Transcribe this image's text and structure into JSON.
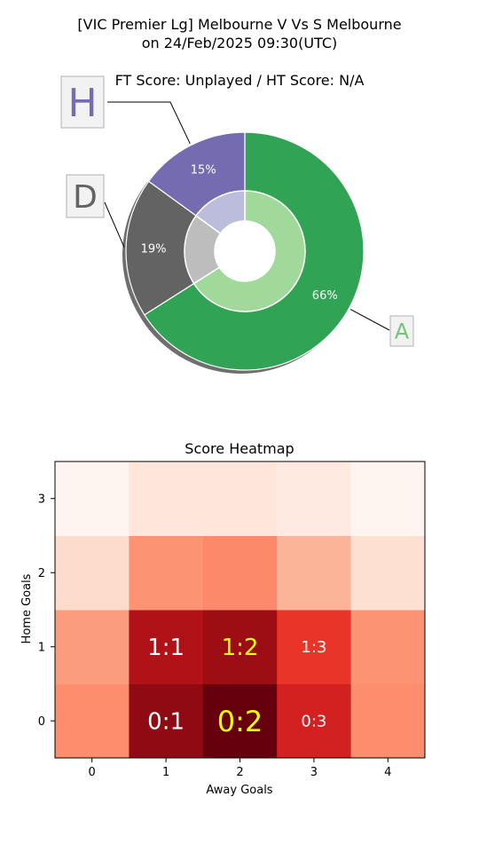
{
  "chart_data": [
    {
      "type": "pie",
      "title_line1": "[VIC Premier Lg] Melbourne V Vs S Melbourne",
      "title_line2": "on 24/Feb/2025 09:30(UTC)",
      "subtitle": "FT Score: Unplayed / HT Score: N/A",
      "outer_ring": [
        {
          "key": "A",
          "label": "A",
          "value": 66,
          "pct_label": "66%",
          "color": "#31a354",
          "label_color": "#74c476"
        },
        {
          "key": "D",
          "label": "D",
          "value": 19,
          "pct_label": "19%",
          "color": "#636363",
          "label_color": "#636363"
        },
        {
          "key": "H",
          "label": "H",
          "value": 15,
          "pct_label": "15%",
          "color": "#756bb1",
          "label_color": "#756bb1"
        }
      ],
      "inner_ring": [
        {
          "key": "A",
          "value": 66,
          "color": "#a1d99b"
        },
        {
          "key": "D",
          "value": 19,
          "color": "#bdbdbd"
        },
        {
          "key": "H",
          "value": 15,
          "color": "#bcbddc"
        }
      ]
    },
    {
      "type": "heatmap",
      "title": "Score Heatmap",
      "xlabel": "Away Goals",
      "ylabel": "Home Goals",
      "x_ticks": [
        "0",
        "1",
        "2",
        "3",
        "4"
      ],
      "y_ticks": [
        "0",
        "1",
        "2",
        "3"
      ],
      "rows": [
        {
          "home": 0,
          "colors": [
            "#fc8d6d",
            "#8f0a12",
            "#67000d",
            "#d32020",
            "#fc8d6d"
          ]
        },
        {
          "home": 1,
          "colors": [
            "#fc9c7e",
            "#b11218",
            "#9d0d14",
            "#e83429",
            "#fc9474"
          ]
        },
        {
          "home": 2,
          "colors": [
            "#fedccd",
            "#fc9474",
            "#fc8a6a",
            "#fcb499",
            "#fee0d2"
          ]
        },
        {
          "home": 3,
          "colors": [
            "#fff5f0",
            "#fee6da",
            "#fee6da",
            "#feeae1",
            "#fff5f0"
          ]
        }
      ],
      "annotations": [
        {
          "home": 0,
          "away": 1,
          "text": "0:1",
          "color": "#ffffff",
          "size": "large"
        },
        {
          "home": 0,
          "away": 2,
          "text": "0:2",
          "color": "#ffff00",
          "size": "xlarge"
        },
        {
          "home": 0,
          "away": 3,
          "text": "0:3",
          "color": "#ffffff",
          "size": "small"
        },
        {
          "home": 1,
          "away": 1,
          "text": "1:1",
          "color": "#ffffff",
          "size": "large"
        },
        {
          "home": 1,
          "away": 2,
          "text": "1:2",
          "color": "#ffff00",
          "size": "large"
        },
        {
          "home": 1,
          "away": 3,
          "text": "1:3",
          "color": "#ffffff",
          "size": "small"
        }
      ]
    }
  ]
}
